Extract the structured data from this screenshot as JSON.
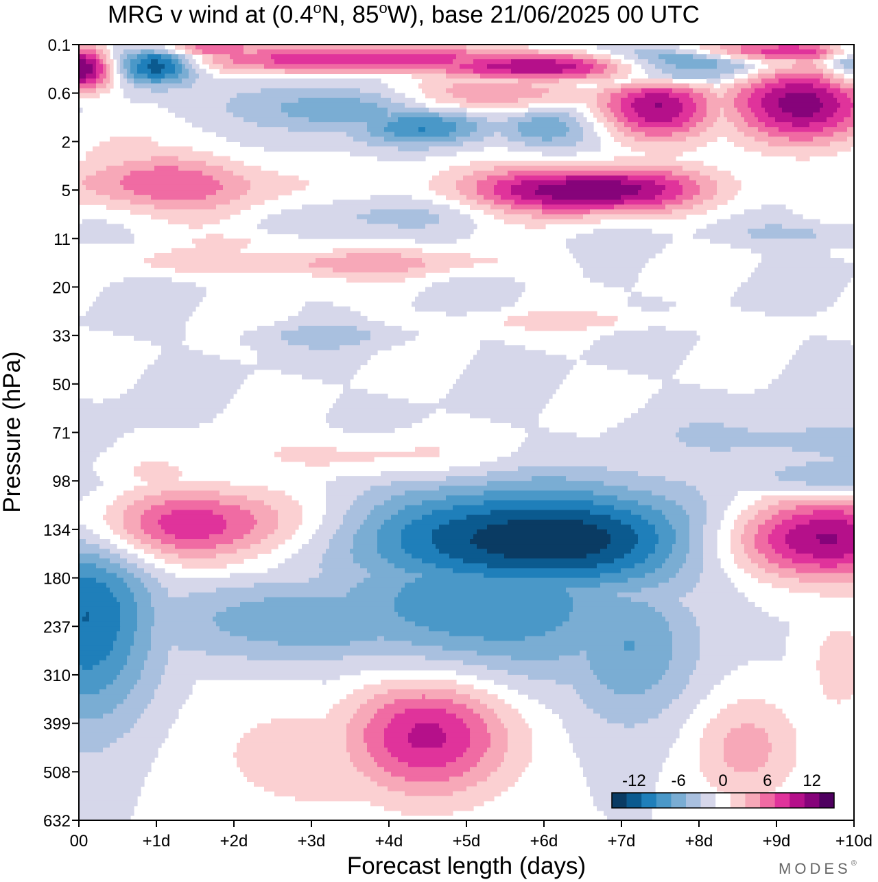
{
  "title_main": "MRG v wind at (0.4",
  "title_lat_unit": "N, 85",
  "title_lon_unit": "W),  base 21/06/2025  00 UTC",
  "title_deg": "o",
  "brand": "MODES",
  "brand_mark": "®",
  "chart_data": {
    "type": "heatmap",
    "variable": "v wind",
    "xlabel": "Forecast length (days)",
    "ylabel": "Pressure (hPa)",
    "xlim": [
      0,
      10
    ],
    "x_ticks": [
      {
        "value": 0,
        "label": "00"
      },
      {
        "value": 1,
        "label": "+1d"
      },
      {
        "value": 2,
        "label": "+2d"
      },
      {
        "value": 3,
        "label": "+3d"
      },
      {
        "value": 4,
        "label": "+4d"
      },
      {
        "value": 5,
        "label": "+5d"
      },
      {
        "value": 6,
        "label": "+6d"
      },
      {
        "value": 7,
        "label": "+7d"
      },
      {
        "value": 8,
        "label": "+8d"
      },
      {
        "value": 9,
        "label": "+9d"
      },
      {
        "value": 10,
        "label": "+10d"
      }
    ],
    "y_levels": [
      "0.1",
      "0.6",
      "2",
      "5",
      "11",
      "20",
      "33",
      "50",
      "71",
      "98",
      "134",
      "180",
      "237",
      "310",
      "399",
      "508",
      "632"
    ],
    "colorbar": {
      "ticks": [
        {
          "value": -12,
          "label": "-12"
        },
        {
          "value": -6,
          "label": "-6"
        },
        {
          "value": 0,
          "label": "0"
        },
        {
          "value": 6,
          "label": "6"
        },
        {
          "value": 12,
          "label": "12"
        }
      ],
      "levels": [
        -15,
        -12,
        -10,
        -8,
        -6,
        -4,
        -2,
        0,
        2,
        4,
        6,
        8,
        10,
        12,
        15
      ],
      "colors": [
        "#0a3b63",
        "#0b5a8f",
        "#1f7fba",
        "#4a98c8",
        "#7aadd3",
        "#a9c0df",
        "#d6d7ea",
        "#ffffff",
        "#fbd0d2",
        "#f7a8b8",
        "#f06ba3",
        "#e0339b",
        "#b5108a",
        "#86037a",
        "#4f0060"
      ]
    },
    "features": [
      {
        "sign": "neg",
        "x": 6.0,
        "level": 10.2,
        "dx": 2.6,
        "dlev": 1.1,
        "peak": -14
      },
      {
        "sign": "neg",
        "x": 5.2,
        "level": 11.6,
        "dx": 2.2,
        "dlev": 1.6,
        "peak": -8
      },
      {
        "sign": "neg",
        "x": 7.1,
        "level": 12.4,
        "dx": 0.9,
        "dlev": 1.6,
        "peak": -6
      },
      {
        "sign": "neg",
        "x": 3.2,
        "level": 11.9,
        "dx": 2.4,
        "dlev": 0.9,
        "peak": -6
      },
      {
        "sign": "neg",
        "x": 0.1,
        "level": 11.8,
        "dx": 0.9,
        "dlev": 2.3,
        "peak": -10
      },
      {
        "sign": "neg",
        "x": 9.7,
        "level": 9.0,
        "dx": 1.4,
        "dlev": 0.5,
        "peak": -5
      },
      {
        "sign": "neg",
        "x": 9.2,
        "level": 8.2,
        "dx": 1.7,
        "dlev": 0.6,
        "peak": -3
      },
      {
        "sign": "neg",
        "x": 3.3,
        "level": 1.3,
        "dx": 1.3,
        "dlev": 0.5,
        "peak": -6
      },
      {
        "sign": "neg",
        "x": 4.5,
        "level": 1.7,
        "dx": 0.9,
        "dlev": 0.4,
        "peak": -8
      },
      {
        "sign": "neg",
        "x": 6.0,
        "level": 1.7,
        "dx": 0.7,
        "dlev": 0.4,
        "peak": -6
      },
      {
        "sign": "neg",
        "x": 1.0,
        "level": 0.4,
        "dx": 0.5,
        "dlev": 0.4,
        "peak": -14
      },
      {
        "sign": "neg",
        "x": 7.6,
        "level": 0.4,
        "dx": 1.1,
        "dlev": 0.35,
        "peak": -12
      },
      {
        "sign": "neg",
        "x": 9.9,
        "level": 0.3,
        "dx": 0.3,
        "dlev": 0.5,
        "peak": -6
      },
      {
        "sign": "neg",
        "x": 3.9,
        "level": 3.5,
        "dx": 1.6,
        "dlev": 0.4,
        "peak": -2.5
      },
      {
        "sign": "neg",
        "x": 9.3,
        "level": 3.9,
        "dx": 1.0,
        "dlev": 0.25,
        "peak": -3
      },
      {
        "sign": "neg",
        "x": 3.1,
        "level": 6.0,
        "dx": 1.1,
        "dlev": 0.25,
        "peak": -2.5
      },
      {
        "sign": "pos",
        "x": 1.4,
        "level": 9.9,
        "dx": 1.7,
        "dlev": 0.8,
        "peak": 10
      },
      {
        "sign": "pos",
        "x": 9.5,
        "level": 10.2,
        "dx": 1.5,
        "dlev": 0.9,
        "peak": 14
      },
      {
        "sign": "pos",
        "x": 4.5,
        "level": 14.2,
        "dx": 1.1,
        "dlev": 1.3,
        "peak": 11
      },
      {
        "sign": "pos",
        "x": 3.2,
        "level": 14.6,
        "dx": 1.9,
        "dlev": 1.6,
        "peak": 3
      },
      {
        "sign": "pos",
        "x": 8.6,
        "level": 14.5,
        "dx": 0.7,
        "dlev": 1.1,
        "peak": 5
      },
      {
        "sign": "pos",
        "x": 9.8,
        "level": 12.8,
        "dx": 0.45,
        "dlev": 1.2,
        "peak": 3
      },
      {
        "sign": "pos",
        "x": 0.9,
        "level": 8.9,
        "dx": 0.9,
        "dlev": 0.5,
        "peak": 3
      },
      {
        "sign": "pos",
        "x": 3.6,
        "level": 8.5,
        "dx": 2.0,
        "dlev": 0.45,
        "peak": 3
      },
      {
        "sign": "pos",
        "x": 6.5,
        "level": 3.0,
        "dx": 1.6,
        "dlev": 0.5,
        "peak": 14
      },
      {
        "sign": "pos",
        "x": 1.2,
        "level": 2.9,
        "dx": 1.4,
        "dlev": 0.6,
        "peak": 8
      },
      {
        "sign": "pos",
        "x": 3.1,
        "level": 4.5,
        "dx": 2.4,
        "dlev": 0.3,
        "peak": 5
      },
      {
        "sign": "pos",
        "x": 7.5,
        "level": 1.3,
        "dx": 0.8,
        "dlev": 0.7,
        "peak": 12
      },
      {
        "sign": "pos",
        "x": 9.3,
        "level": 1.2,
        "dx": 1.0,
        "dlev": 0.8,
        "peak": 13
      },
      {
        "sign": "pos",
        "x": 5.3,
        "level": 1.0,
        "dx": 1.4,
        "dlev": 0.4,
        "peak": 6
      },
      {
        "sign": "pos",
        "x": 6.3,
        "level": 0.45,
        "dx": 1.8,
        "dlev": 0.3,
        "peak": 14
      },
      {
        "sign": "pos",
        "x": 3.6,
        "level": 0.3,
        "dx": 2.6,
        "dlev": 0.3,
        "peak": 10
      },
      {
        "sign": "pos",
        "x": 0.05,
        "level": 0.5,
        "dx": 0.4,
        "dlev": 0.45,
        "peak": 14
      },
      {
        "sign": "pos",
        "x": 9.0,
        "level": 0.15,
        "dx": 1.6,
        "dlev": 0.25,
        "peak": 10
      },
      {
        "sign": "pos",
        "x": 1.6,
        "level": 0.1,
        "dx": 0.9,
        "dlev": 0.2,
        "peak": 9
      },
      {
        "sign": "pos",
        "x": 9.9,
        "level": 1.8,
        "dx": 0.9,
        "dlev": 0.6,
        "peak": 3
      },
      {
        "sign": "pos",
        "x": 0.4,
        "level": 2.3,
        "dx": 0.8,
        "dlev": 0.8,
        "peak": 2.5
      },
      {
        "sign": "pos",
        "x": 6.5,
        "level": 5.7,
        "dx": 2.3,
        "dlev": 0.2,
        "peak": 2.5
      },
      {
        "sign": "pos",
        "x": 2.4,
        "level": 4.1,
        "dx": 0.9,
        "dlev": 0.25,
        "peak": 2.5
      }
    ]
  }
}
